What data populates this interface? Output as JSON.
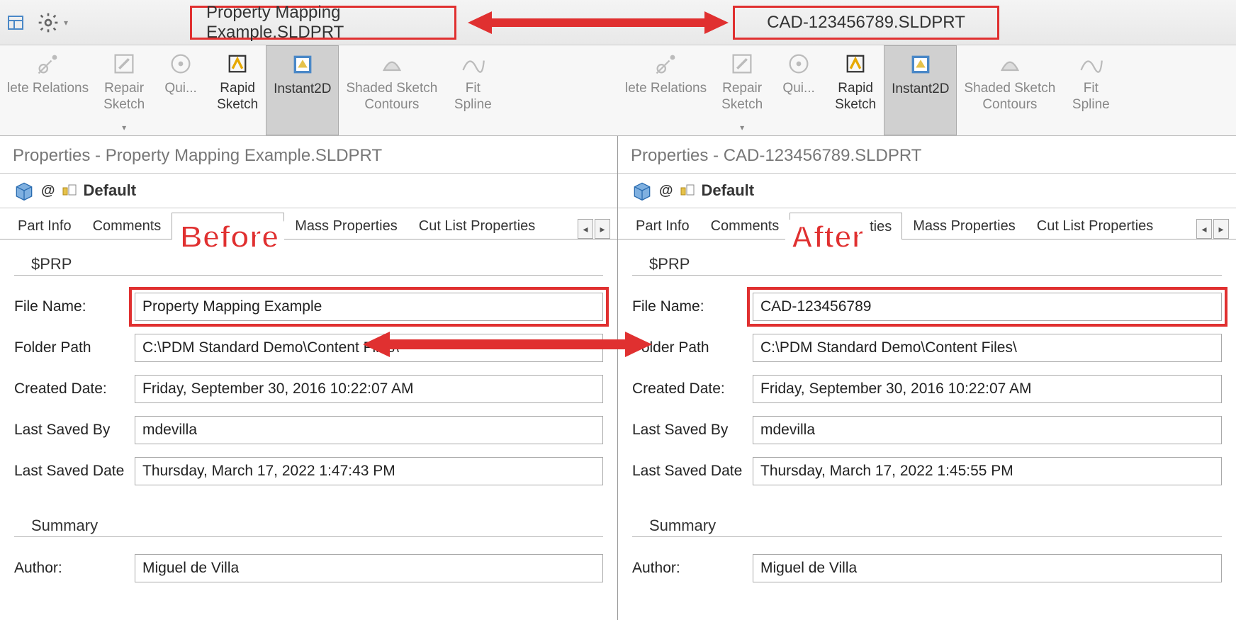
{
  "colors": {
    "highlight": "#e03030",
    "toolbar_bg": "#f7f7f7",
    "selected_bg": "#d0d0d0",
    "border": "#aaaaaa",
    "text_muted": "#888888"
  },
  "titles": {
    "left": "Property Mapping Example.SLDPRT",
    "right": "CAD-123456789.SLDPRT"
  },
  "annotations": {
    "before": "Before",
    "after": "After"
  },
  "ribbon": {
    "tools": [
      {
        "id": "delete-relations",
        "label": "lete Relations",
        "enabled": false
      },
      {
        "id": "repair-sketch",
        "label": "Repair\nSketch",
        "enabled": false,
        "dropdown": true
      },
      {
        "id": "quick",
        "label": "Qui...",
        "enabled": false
      },
      {
        "id": "rapid-sketch",
        "label": "Rapid\nSketch",
        "enabled": true
      },
      {
        "id": "instant2d",
        "label": "Instant2D",
        "enabled": true,
        "selected": true
      },
      {
        "id": "shaded-contours",
        "label": "Shaded Sketch\nContours",
        "enabled": false
      },
      {
        "id": "fit-spline",
        "label": "Fit\nSpline",
        "enabled": false
      }
    ]
  },
  "panels": {
    "left": {
      "title": "Properties - Property Mapping Example.SLDPRT",
      "config": "Default",
      "tabs": [
        "Part Info",
        "Comments",
        "File Properties",
        "Mass Properties",
        "Cut List Properties"
      ],
      "active_tab": 2,
      "prp_label": "$PRP",
      "fields": {
        "file_name": {
          "label": "File Name:",
          "value": "Property Mapping Example"
        },
        "folder_path": {
          "label": "Folder Path",
          "value": "C:\\PDM Standard Demo\\Content Files\\"
        },
        "created_date": {
          "label": "Created Date:",
          "value": "Friday, September 30, 2016 10:22:07 AM"
        },
        "last_saved_by": {
          "label": "Last Saved By",
          "value": "mdevilla"
        },
        "last_saved_date": {
          "label": "Last Saved Date",
          "value": "Thursday, March 17, 2022 1:47:43 PM"
        }
      },
      "summary_label": "Summary",
      "author": {
        "label": "Author:",
        "value": "Miguel de Villa"
      }
    },
    "right": {
      "title": "Properties - CAD-123456789.SLDPRT",
      "config": "Default",
      "tabs": [
        "Part Info",
        "Comments",
        "File Properties",
        "Mass Properties",
        "Cut List Properties"
      ],
      "active_tab": 2,
      "prp_label": "$PRP",
      "fields": {
        "file_name": {
          "label": "File Name:",
          "value": "CAD-123456789"
        },
        "folder_path": {
          "label": "Folder Path",
          "value": "C:\\PDM Standard Demo\\Content Files\\"
        },
        "created_date": {
          "label": "Created Date:",
          "value": "Friday, September 30, 2016 10:22:07 AM"
        },
        "last_saved_by": {
          "label": "Last Saved By",
          "value": "mdevilla"
        },
        "last_saved_date": {
          "label": "Last Saved Date",
          "value": "Thursday, March 17, 2022 1:45:55 PM"
        }
      },
      "summary_label": "Summary",
      "author": {
        "label": "Author:",
        "value": "Miguel de Villa"
      }
    }
  }
}
